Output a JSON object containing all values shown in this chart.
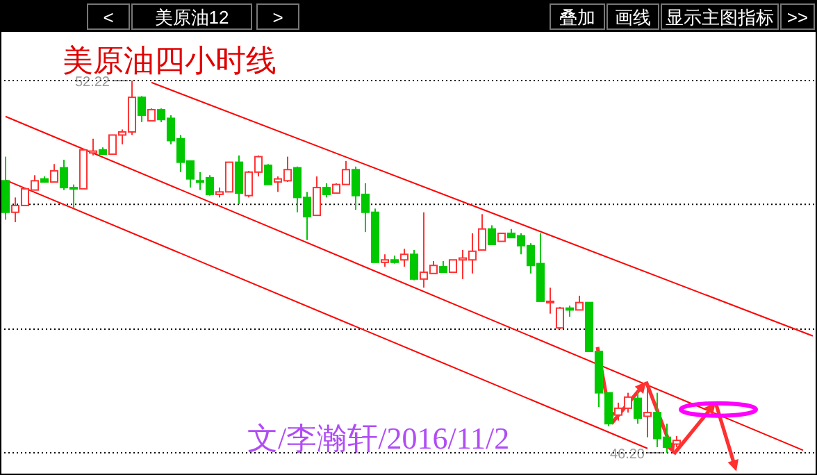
{
  "chart_data": {
    "type": "candlestick",
    "title": "美原油四小时线",
    "annotations": [
      "<",
      "美原油12",
      ">",
      "叠加",
      "画线",
      "显示主图指标",
      ">>",
      "文/李瀚轩/2016/11/2",
      "52.22",
      "46.20"
    ],
    "categories": [
      null,
      null,
      null,
      null,
      null,
      null,
      null,
      null,
      null,
      null,
      null,
      null,
      null,
      null,
      null,
      null,
      null,
      null,
      null,
      null,
      null,
      null,
      null,
      null,
      null,
      null,
      null,
      null,
      null,
      null,
      null,
      null,
      null,
      null,
      null,
      null,
      null,
      null,
      null,
      null,
      null,
      null,
      null,
      null,
      null,
      null,
      null,
      null,
      null,
      null,
      null,
      null,
      null,
      null,
      null,
      null,
      null,
      null,
      null,
      null,
      null,
      null,
      null,
      null,
      null,
      null,
      null,
      null,
      null,
      null,
      null,
      null,
      null,
      null,
      null,
      null,
      null,
      null,
      null,
      null,
      null,
      null,
      null,
      null
    ],
    "ohlc": [
      [
        50.6,
        50.99,
        49.97,
        50.09
      ],
      [
        50.09,
        50.33,
        49.93,
        50.2
      ],
      [
        50.2,
        50.49,
        50.2,
        50.47
      ],
      [
        50.45,
        50.69,
        50.45,
        50.6
      ],
      [
        50.63,
        50.67,
        50.58,
        50.58
      ],
      [
        50.58,
        50.87,
        50.58,
        50.76
      ],
      [
        50.81,
        50.94,
        50.45,
        50.49
      ],
      [
        50.49,
        50.54,
        50.15,
        50.48
      ],
      [
        50.47,
        51.12,
        50.47,
        51.1
      ],
      [
        51.05,
        51.28,
        51.01,
        51.08
      ],
      [
        51.1,
        51.14,
        51.03,
        51.03
      ],
      [
        51.03,
        51.34,
        51.03,
        51.34
      ],
      [
        51.34,
        51.43,
        51.19,
        51.39
      ],
      [
        51.39,
        52.22,
        51.34,
        51.95
      ],
      [
        51.95,
        51.97,
        51.55,
        51.66
      ],
      [
        51.57,
        51.77,
        51.57,
        51.75
      ],
      [
        51.75,
        51.77,
        51.55,
        51.59
      ],
      [
        51.61,
        51.66,
        51.19,
        51.25
      ],
      [
        51.28,
        51.34,
        50.74,
        50.9
      ],
      [
        50.92,
        50.92,
        50.49,
        50.63
      ],
      [
        50.6,
        50.74,
        50.45,
        50.58
      ],
      [
        50.65,
        50.69,
        50.36,
        50.38
      ],
      [
        50.38,
        50.49,
        50.33,
        50.42
      ],
      [
        50.42,
        50.9,
        50.42,
        50.9
      ],
      [
        50.9,
        51.01,
        50.22,
        50.4
      ],
      [
        50.36,
        50.76,
        50.33,
        50.74
      ],
      [
        50.74,
        51.01,
        50.67,
        50.99
      ],
      [
        50.85,
        50.87,
        50.54,
        50.54
      ],
      [
        50.58,
        50.67,
        50.42,
        50.63
      ],
      [
        50.6,
        50.99,
        50.58,
        50.78
      ],
      [
        50.81,
        50.83,
        50.09,
        50.33
      ],
      [
        50.33,
        50.42,
        49.64,
        50.02
      ],
      [
        50.04,
        50.67,
        50.04,
        50.49
      ],
      [
        50.49,
        50.56,
        50.33,
        50.38
      ],
      [
        50.4,
        50.56,
        50.4,
        50.54
      ],
      [
        50.54,
        50.92,
        50.54,
        50.78
      ],
      [
        50.78,
        50.83,
        50.13,
        50.36
      ],
      [
        50.38,
        50.56,
        49.77,
        50.09
      ],
      [
        50.09,
        50.15,
        49.28,
        49.28
      ],
      [
        49.28,
        49.41,
        49.21,
        49.32
      ],
      [
        49.32,
        49.39,
        49.26,
        49.28
      ],
      [
        49.32,
        49.5,
        49.21,
        49.41
      ],
      [
        49.41,
        49.48,
        48.99,
        49.01
      ],
      [
        49.01,
        50.09,
        48.87,
        49.12
      ],
      [
        49.1,
        49.3,
        49.1,
        49.23
      ],
      [
        49.21,
        49.3,
        49.12,
        49.12
      ],
      [
        49.12,
        49.32,
        49.12,
        49.32
      ],
      [
        49.32,
        49.48,
        49.01,
        49.35
      ],
      [
        49.32,
        49.75,
        49.1,
        49.46
      ],
      [
        49.48,
        50.06,
        49.48,
        49.82
      ],
      [
        49.82,
        49.88,
        49.57,
        49.57
      ],
      [
        49.62,
        49.75,
        49.62,
        49.75
      ],
      [
        49.75,
        49.82,
        49.68,
        49.68
      ],
      [
        49.71,
        49.75,
        49.41,
        49.55
      ],
      [
        49.55,
        49.59,
        49.1,
        49.23
      ],
      [
        49.26,
        49.75,
        48.65,
        48.65
      ],
      [
        48.64,
        48.87,
        48.45,
        48.65
      ],
      [
        48.22,
        48.56,
        48.2,
        48.54
      ],
      [
        48.54,
        48.58,
        48.4,
        48.51
      ],
      [
        48.51,
        48.74,
        48.51,
        48.63
      ],
      [
        48.63,
        48.63,
        47.84,
        47.84
      ],
      [
        47.84,
        47.84,
        46.94,
        47.17
      ],
      [
        47.17,
        47.17,
        46.63,
        46.67
      ],
      [
        46.81,
        47.01,
        46.72,
        46.92
      ],
      [
        46.92,
        47.17,
        46.85,
        47.1
      ],
      [
        47.08,
        47.19,
        46.67,
        46.76
      ],
      [
        46.79,
        47.3,
        46.45,
        46.85
      ],
      [
        46.85,
        47.17,
        46.29,
        46.43
      ],
      [
        46.45,
        46.67,
        46.2,
        46.29
      ],
      [
        46.34,
        46.47,
        46.29,
        46.4
      ],
      null,
      null,
      null,
      null,
      null,
      null,
      null,
      null,
      null,
      null,
      null,
      null,
      null,
      null
    ],
    "colors": [
      "#00c800",
      "#ff3232",
      "#ff3232",
      "#ff3232",
      "#00c800",
      "#ff3232",
      "#00c800",
      "#00c800",
      "#ff3232",
      "#ff3232",
      "#00c800",
      "#ff3232",
      "#ff3232",
      "#ff3232",
      "#00c800",
      "#ff3232",
      "#00c800",
      "#00c800",
      "#00c800",
      "#00c800",
      "#00c800",
      "#00c800",
      "#ff3232",
      "#ff3232",
      "#00c800",
      "#ff3232",
      "#ff3232",
      "#00c800",
      "#ff3232",
      "#ff3232",
      "#00c800",
      "#00c800",
      "#ff3232",
      "#00c800",
      "#ff3232",
      "#ff3232",
      "#00c800",
      "#00c800",
      "#00c800",
      "#ff3232",
      "#00c800",
      "#ff3232",
      "#00c800",
      "#ff3232",
      "#ff3232",
      "#00c800",
      "#ff3232",
      "#ff3232",
      "#ff3232",
      "#ff3232",
      "#00c800",
      "#ff3232",
      "#00c800",
      "#00c800",
      "#00c800",
      "#00c800",
      "#ff3232",
      "#ff3232",
      "#00c800",
      "#ff3232",
      "#00c800",
      "#00c800",
      "#00c800",
      "#ff3232",
      "#ff3232",
      "#00c800",
      "#ff3232",
      "#00c800",
      "#00c800",
      "#ff3232",
      null,
      null,
      null,
      null,
      null,
      null,
      null,
      null,
      null,
      null,
      null,
      null,
      null,
      null
    ],
    "series": [
      {
        "type": "line",
        "color": "#ff0000",
        "values": [
          null,
          null,
          null,
          null,
          null,
          null,
          null,
          null,
          null,
          null,
          null,
          null,
          null,
          null,
          null,
          52.19,
          null,
          null,
          null,
          null,
          null,
          null,
          null,
          null,
          null,
          null,
          null,
          null,
          null,
          null,
          null,
          null,
          null,
          null,
          null,
          null,
          null,
          null,
          null,
          null,
          null,
          null,
          null,
          null,
          null,
          null,
          null,
          null,
          null,
          null,
          null,
          null,
          null,
          null,
          null,
          null,
          null,
          null,
          null,
          null,
          null,
          null,
          null,
          null,
          null,
          null,
          null,
          null,
          null,
          null,
          null,
          null,
          null,
          null,
          null,
          null,
          null,
          null,
          null,
          null,
          null,
          null,
          null,
          48.09
        ]
      },
      {
        "type": "line",
        "color": "#ff0000",
        "values": [
          51.64,
          null,
          null,
          null,
          null,
          null,
          null,
          null,
          null,
          null,
          null,
          null,
          null,
          null,
          null,
          null,
          null,
          null,
          null,
          null,
          null,
          null,
          null,
          null,
          null,
          null,
          null,
          null,
          null,
          null,
          null,
          null,
          null,
          null,
          null,
          null,
          null,
          null,
          null,
          null,
          null,
          null,
          null,
          null,
          null,
          null,
          null,
          null,
          null,
          null,
          null,
          null,
          null,
          null,
          null,
          null,
          null,
          null,
          null,
          null,
          null,
          null,
          null,
          null,
          null,
          null,
          null,
          null,
          null,
          null,
          null,
          null,
          null,
          null,
          null,
          null,
          null,
          null,
          null,
          null,
          null,
          null,
          46.24,
          null
        ]
      },
      {
        "type": "line",
        "color": "#ff0000",
        "values": [
          50.61,
          null,
          null,
          null,
          null,
          null,
          null,
          null,
          null,
          null,
          null,
          null,
          null,
          null,
          null,
          null,
          null,
          null,
          null,
          null,
          null,
          null,
          null,
          null,
          null,
          null,
          null,
          null,
          null,
          null,
          null,
          null,
          null,
          null,
          null,
          null,
          null,
          null,
          null,
          null,
          null,
          null,
          null,
          null,
          null,
          null,
          null,
          null,
          null,
          null,
          null,
          null,
          null,
          null,
          null,
          null,
          null,
          null,
          null,
          null,
          null,
          null,
          null,
          null,
          null,
          null,
          46.27,
          null,
          null,
          null,
          null,
          null,
          null,
          null,
          null,
          null,
          null,
          null,
          null,
          null,
          null,
          null,
          null,
          null
        ]
      }
    ],
    "ylim": [
      45.84,
      53.03
    ],
    "yticks": [
      {
        "value": 52.22,
        "label": null
      },
      {
        "value": 50.22,
        "label": null
      },
      {
        "value": 48.2,
        "label": null
      },
      {
        "value": 46.2,
        "label": null
      }
    ],
    "grid": "y"
  }
}
